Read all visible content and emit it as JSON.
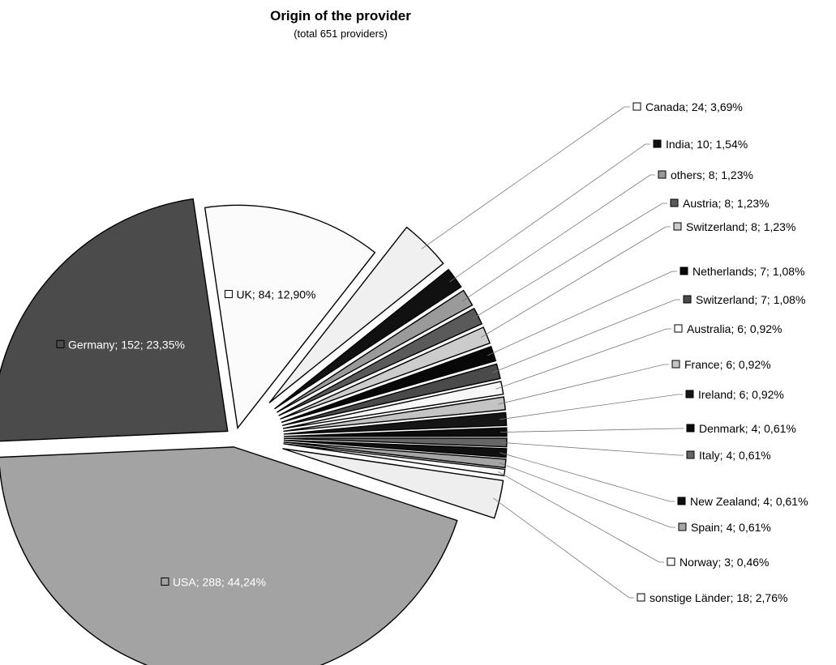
{
  "chart_data": {
    "type": "pie",
    "title": "Origin of the provider",
    "subtitle": "(total 651 providers)",
    "series": [
      {
        "name": "Canada",
        "value": 24,
        "percent": "3,69%",
        "label": "Canada; 24; 3,69%",
        "color": "#f0f0f0",
        "marker": "#ffffff",
        "label_style": "callout"
      },
      {
        "name": "India",
        "value": 10,
        "percent": "1,54%",
        "label": "India; 10; 1,54%",
        "color": "#111111",
        "marker": "#111111",
        "label_style": "callout"
      },
      {
        "name": "others",
        "value": 8,
        "percent": "1,23%",
        "label": "others; 8; 1,23%",
        "color": "#9a9a9a",
        "marker": "#9a9a9a",
        "label_style": "callout"
      },
      {
        "name": "Austria",
        "value": 8,
        "percent": "1,23%",
        "label": "Austria; 8; 1,23%",
        "color": "#5a5a5a",
        "marker": "#5a5a5a",
        "label_style": "callout"
      },
      {
        "name": "Switzerland",
        "value": 8,
        "percent": "1,23%",
        "label": "Switzerland; 8; 1,23%",
        "color": "#cccccc",
        "marker": "#cccccc",
        "label_style": "callout"
      },
      {
        "name": "Netherlands",
        "value": 7,
        "percent": "1,08%",
        "label": "Netherlands; 7; 1,08%",
        "color": "#080808",
        "marker": "#080808",
        "label_style": "callout"
      },
      {
        "name": "Switzerland",
        "value": 7,
        "percent": "1,08%",
        "label": "Switzerland; 7; 1,08%",
        "color": "#4a4a4a",
        "marker": "#4a4a4a",
        "label_style": "callout"
      },
      {
        "name": "Australia",
        "value": 6,
        "percent": "0,92%",
        "label": "Australia; 6; 0,92%",
        "color": "#f7f7f7",
        "marker": "#ffffff",
        "label_style": "callout"
      },
      {
        "name": "France",
        "value": 6,
        "percent": "0,92%",
        "label": "France; 6; 0,92%",
        "color": "#c4c4c4",
        "marker": "#c4c4c4",
        "label_style": "callout"
      },
      {
        "name": "Ireland",
        "value": 6,
        "percent": "0,92%",
        "label": "Ireland; 6; 0,92%",
        "color": "#151515",
        "marker": "#151515",
        "label_style": "callout"
      },
      {
        "name": "Denmark",
        "value": 4,
        "percent": "0,61%",
        "label": "Denmark; 4; 0,61%",
        "color": "#0c0c0c",
        "marker": "#0c0c0c",
        "label_style": "callout"
      },
      {
        "name": "Italy",
        "value": 4,
        "percent": "0,61%",
        "label": "Italy; 4; 0,61%",
        "color": "#666666",
        "marker": "#666666",
        "label_style": "callout"
      },
      {
        "name": "New Zealand",
        "value": 4,
        "percent": "0,61%",
        "label": "New Zealand; 4; 0,61%",
        "color": "#101010",
        "marker": "#101010",
        "label_style": "callout"
      },
      {
        "name": "Spain",
        "value": 4,
        "percent": "0,61%",
        "label": "Spain; 4; 0,61%",
        "color": "#a5a5a5",
        "marker": "#a5a5a5",
        "label_style": "callout"
      },
      {
        "name": "Norway",
        "value": 3,
        "percent": "0,46%",
        "label": "Norway; 3; 0,46%",
        "color": "#f9f9f9",
        "marker": "#ffffff",
        "label_style": "callout"
      },
      {
        "name": "sonstige Länder",
        "value": 18,
        "percent": "2,76%",
        "label": "sonstige Länder; 18; 2,76%",
        "color": "#eeeeee",
        "marker": "#ffffff",
        "label_style": "callout"
      },
      {
        "name": "USA",
        "value": 288,
        "percent": "44,24%",
        "label": "USA; 288; 44,24%",
        "color": "#a3a3a3",
        "marker": "#a3a3a3",
        "label_style": "inside",
        "text_color": "#ffffff"
      },
      {
        "name": "Germany",
        "value": 152,
        "percent": "23,35%",
        "label": "Germany; 152; 23,35%",
        "color": "#4b4b4b",
        "marker": "#4b4b4b",
        "label_style": "inside",
        "text_color": "#ffffff"
      },
      {
        "name": "UK",
        "value": 84,
        "percent": "12,90%",
        "label": "UK; 84; 12,90%",
        "color": "#fbfbfb",
        "marker": "#ffffff",
        "label_style": "inside",
        "text_color": "#000000"
      }
    ]
  }
}
